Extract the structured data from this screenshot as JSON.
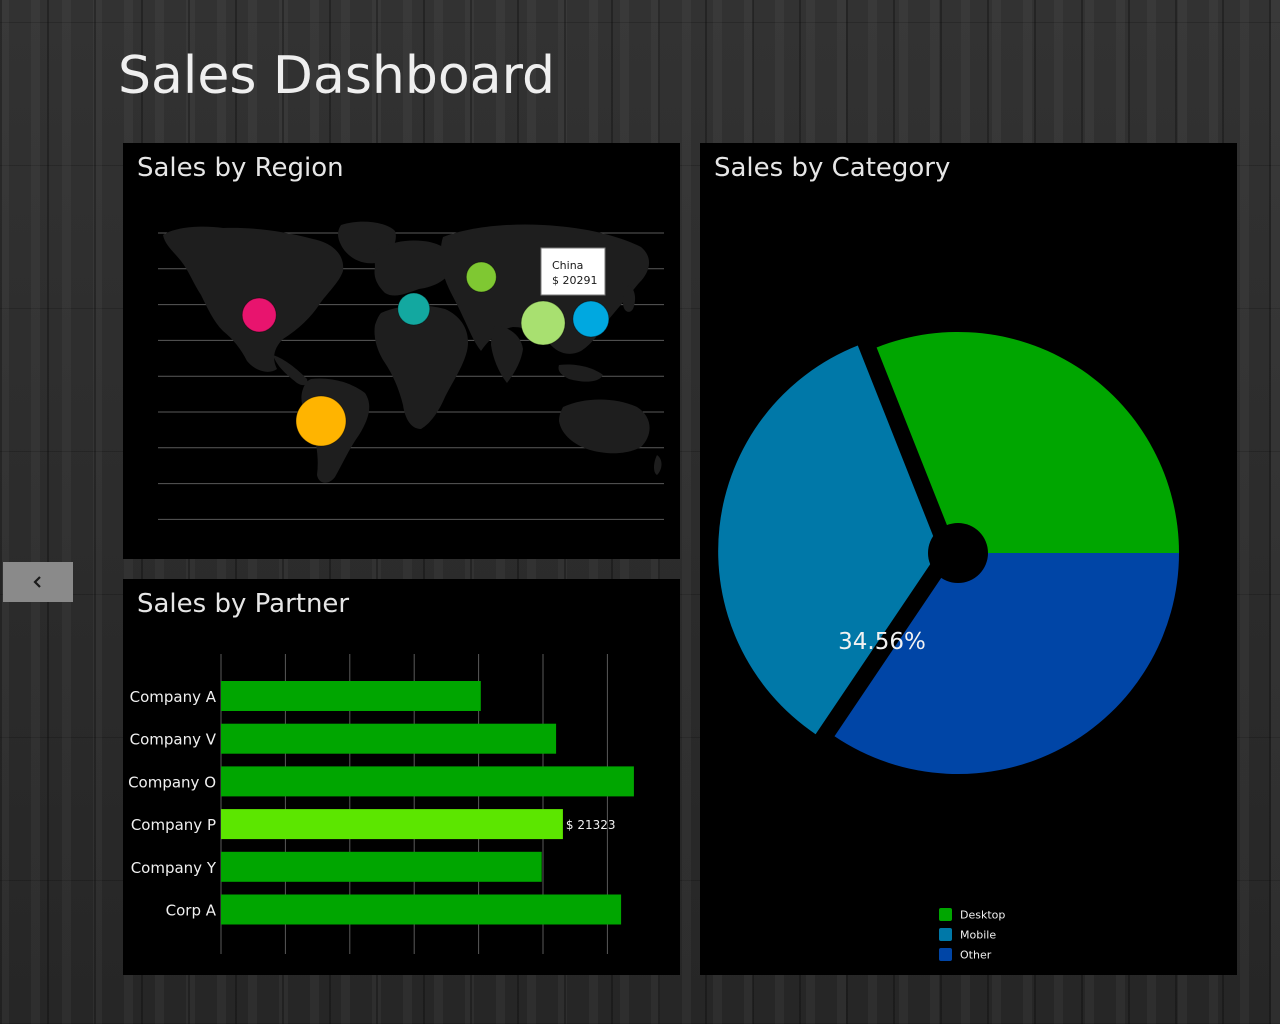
{
  "page": {
    "title": "Sales Dashboard"
  },
  "nav": {
    "back_icon": "chevron-left-icon"
  },
  "colors": {
    "panel_bg": "#000000",
    "bar": "#00a600",
    "bar_highlight": "#5ce600",
    "desktop": "#00a600",
    "mobile": "#0078a8",
    "other": "#0045a6"
  },
  "chart_data": [
    {
      "type": "scatter",
      "title": "Sales by Region",
      "background": "world-map",
      "bubbles": [
        {
          "name": "United States",
          "lon": -98,
          "lat": 39,
          "size": 17,
          "color": "#e8146e"
        },
        {
          "name": "Brazil",
          "lon": -54,
          "lat": -14,
          "size": 25,
          "color": "#ffb400"
        },
        {
          "name": "Italy",
          "lon": 12,
          "lat": 42,
          "size": 16,
          "color": "#13a8a0"
        },
        {
          "name": "Russia",
          "lon": 60,
          "lat": 58,
          "size": 15,
          "color": "#7fc832"
        },
        {
          "name": "China",
          "lon": 104,
          "lat": 35,
          "size": 22,
          "color": "#a8e070",
          "value": 20291
        },
        {
          "name": "Japan",
          "lon": 138,
          "lat": 37,
          "size": 18,
          "color": "#00a8e0"
        }
      ],
      "tooltip": {
        "label": "China",
        "value": "$ 20291"
      }
    },
    {
      "type": "bar",
      "orientation": "horizontal",
      "title": "Sales by Partner",
      "categories": [
        "Company A",
        "Company V",
        "Company O",
        "Company P",
        "Company Y",
        "Corp A"
      ],
      "values": [
        16200,
        20900,
        25750,
        21323,
        20000,
        24950
      ],
      "xlim": [
        0,
        28000
      ],
      "highlight_index": 3,
      "highlight_label": "$ 21323"
    },
    {
      "type": "pie",
      "title": "Sales by Category",
      "slices": [
        {
          "label": "Desktop",
          "value": 31.0
        },
        {
          "label": "Other",
          "value": 34.44
        },
        {
          "label": "Mobile",
          "value": 34.56
        }
      ],
      "exploded": "Mobile",
      "center_label": "34.56%",
      "legend": [
        "Desktop",
        "Mobile",
        "Other"
      ],
      "legend_position": "bottom"
    }
  ]
}
